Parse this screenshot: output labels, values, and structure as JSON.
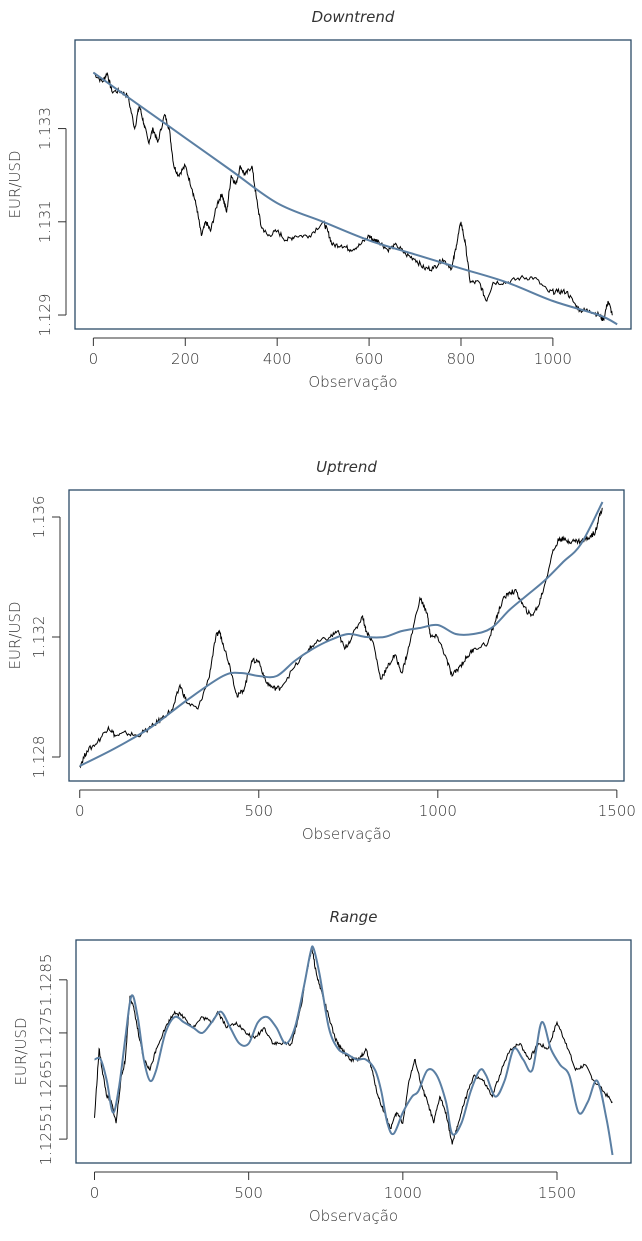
{
  "chart_data": [
    {
      "type": "line",
      "title": "Downtrend",
      "xlabel": "Observação",
      "ylabel": "EUR/USD",
      "xlim": [
        -40,
        1170
      ],
      "ylim": [
        1.1287,
        1.1349
      ],
      "xticks": [
        0,
        200,
        400,
        600,
        800,
        1000
      ],
      "xtick_labels": [
        "0",
        "200",
        "400",
        "600",
        "800",
        "1000"
      ],
      "yticks": [
        1.129,
        1.131,
        1.133
      ],
      "ytick_labels": [
        "1.129",
        "1.131",
        "1.133"
      ],
      "series": [
        {
          "role": "price",
          "color": "#000000",
          "x": [
            0,
            20,
            30,
            40,
            60,
            75,
            90,
            100,
            110,
            120,
            130,
            140,
            155,
            165,
            175,
            185,
            200,
            215,
            225,
            235,
            245,
            255,
            270,
            280,
            290,
            300,
            310,
            320,
            330,
            345,
            355,
            365,
            380,
            400,
            420,
            440,
            470,
            500,
            510,
            520,
            540,
            560,
            580,
            600,
            610,
            620,
            640,
            660,
            680,
            700,
            720,
            740,
            760,
            780,
            790,
            800,
            810,
            820,
            840,
            855,
            870,
            900,
            930,
            960,
            990,
            1010,
            1030,
            1050,
            1060,
            1080,
            1100,
            1110,
            1120,
            1130
          ],
          "y": [
            1.1342,
            1.134,
            1.1342,
            1.1338,
            1.1338,
            1.1337,
            1.133,
            1.1335,
            1.1331,
            1.1327,
            1.133,
            1.1327,
            1.1333,
            1.133,
            1.1322,
            1.132,
            1.1322,
            1.1317,
            1.1313,
            1.1307,
            1.131,
            1.1308,
            1.1314,
            1.1316,
            1.1312,
            1.132,
            1.1318,
            1.1322,
            1.132,
            1.1322,
            1.1315,
            1.1309,
            1.1307,
            1.1308,
            1.1306,
            1.1307,
            1.1307,
            1.131,
            1.1308,
            1.1305,
            1.1305,
            1.1304,
            1.1305,
            1.1307,
            1.1306,
            1.1306,
            1.1304,
            1.1305,
            1.1303,
            1.1302,
            1.13,
            1.13,
            1.1302,
            1.13,
            1.1305,
            1.131,
            1.1305,
            1.1297,
            1.1297,
            1.1293,
            1.1297,
            1.1297,
            1.1298,
            1.1298,
            1.1295,
            1.1295,
            1.1295,
            1.1292,
            1.1291,
            1.1291,
            1.129,
            1.1289,
            1.1293,
            1.129
          ]
        },
        {
          "role": "trend",
          "color": "#5b7fa3",
          "x": [
            0,
            100,
            200,
            300,
            400,
            500,
            600,
            700,
            800,
            900,
            1000,
            1100,
            1140
          ],
          "y": [
            1.1342,
            1.1335,
            1.1328,
            1.1321,
            1.1314,
            1.131,
            1.1306,
            1.1303,
            1.13,
            1.1297,
            1.1293,
            1.129,
            1.1288
          ]
        }
      ]
    },
    {
      "type": "line",
      "title": "Uptrend",
      "xlabel": "Observação",
      "ylabel": "EUR/USD",
      "xlim": [
        -30,
        1520
      ],
      "ylim": [
        1.1272,
        1.1369
      ],
      "xticks": [
        0,
        500,
        1000,
        1500
      ],
      "xtick_labels": [
        "0",
        "500",
        "1000",
        "1500"
      ],
      "yticks": [
        1.128,
        1.132,
        1.136
      ],
      "ytick_labels": [
        "1.128",
        "1.132",
        "1.136"
      ],
      "series": [
        {
          "role": "price",
          "color": "#000000",
          "x": [
            0,
            20,
            50,
            80,
            100,
            130,
            160,
            200,
            230,
            260,
            280,
            300,
            330,
            360,
            380,
            390,
            400,
            420,
            440,
            460,
            480,
            500,
            520,
            540,
            560,
            600,
            640,
            660,
            700,
            720,
            740,
            760,
            790,
            800,
            820,
            840,
            860,
            880,
            900,
            920,
            950,
            970,
            980,
            1000,
            1020,
            1040,
            1060,
            1080,
            1100,
            1140,
            1160,
            1180,
            1200,
            1220,
            1240,
            1260,
            1280,
            1300,
            1320,
            1340,
            1360,
            1380,
            1400,
            1420,
            1440,
            1450,
            1460
          ],
          "y": [
            1.1277,
            1.1282,
            1.1285,
            1.129,
            1.1287,
            1.1288,
            1.1287,
            1.129,
            1.1293,
            1.1296,
            1.1304,
            1.1298,
            1.1296,
            1.1306,
            1.132,
            1.1322,
            1.1318,
            1.131,
            1.13,
            1.1303,
            1.1312,
            1.1312,
            1.1305,
            1.1303,
            1.1303,
            1.131,
            1.1316,
            1.1318,
            1.132,
            1.1322,
            1.1316,
            1.132,
            1.1327,
            1.1322,
            1.1318,
            1.1306,
            1.131,
            1.1314,
            1.1308,
            1.1317,
            1.1333,
            1.1328,
            1.132,
            1.132,
            1.1314,
            1.1307,
            1.131,
            1.1313,
            1.1316,
            1.1318,
            1.1325,
            1.1332,
            1.1335,
            1.1335,
            1.133,
            1.1327,
            1.133,
            1.1338,
            1.1348,
            1.1353,
            1.1352,
            1.1352,
            1.1352,
            1.1353,
            1.1355,
            1.136,
            1.1363
          ]
        },
        {
          "role": "trend",
          "color": "#5b7fa3",
          "x": [
            0,
            100,
            200,
            300,
            400,
            450,
            500,
            550,
            600,
            650,
            700,
            750,
            800,
            850,
            900,
            950,
            1000,
            1050,
            1100,
            1150,
            1200,
            1250,
            1300,
            1350,
            1400,
            1460
          ],
          "y": [
            1.1277,
            1.1283,
            1.129,
            1.1299,
            1.1307,
            1.1308,
            1.1307,
            1.1307,
            1.1312,
            1.1316,
            1.1319,
            1.1321,
            1.132,
            1.132,
            1.1322,
            1.1323,
            1.1324,
            1.1321,
            1.1321,
            1.1323,
            1.1329,
            1.1334,
            1.1339,
            1.1345,
            1.1351,
            1.1365
          ]
        }
      ]
    },
    {
      "type": "line",
      "title": "Range",
      "xlabel": "Observação",
      "ylabel": "EUR/USD",
      "xlim": [
        -60,
        1740
      ],
      "ylim": [
        1.12505,
        1.12925
      ],
      "xticks": [
        0,
        500,
        1000,
        1500
      ],
      "xtick_labels": [
        "0",
        "500",
        "1000",
        "1500"
      ],
      "yticks": [
        1.1255,
        1.1265,
        1.1275,
        1.1285
      ],
      "ytick_labels": [
        "1.1255",
        "1.1265",
        "1.1275",
        "1.1285"
      ],
      "series": [
        {
          "role": "price",
          "color": "#000000",
          "x": [
            0,
            15,
            25,
            40,
            55,
            70,
            85,
            100,
            115,
            130,
            145,
            160,
            180,
            200,
            230,
            260,
            290,
            320,
            350,
            380,
            400,
            430,
            460,
            490,
            520,
            550,
            580,
            610,
            640,
            670,
            690,
            705,
            720,
            740,
            760,
            780,
            800,
            830,
            860,
            880,
            900,
            920,
            940,
            960,
            980,
            1000,
            1020,
            1040,
            1060,
            1080,
            1100,
            1120,
            1140,
            1160,
            1180,
            1200,
            1230,
            1260,
            1290,
            1320,
            1350,
            1380,
            1410,
            1440,
            1470,
            1500,
            1530,
            1560,
            1590,
            1620,
            1650,
            1680
          ],
          "y": [
            1.1259,
            1.1272,
            1.1268,
            1.1263,
            1.1262,
            1.1258,
            1.1266,
            1.127,
            1.1282,
            1.1279,
            1.1274,
            1.127,
            1.1268,
            1.1272,
            1.1276,
            1.1279,
            1.1278,
            1.1276,
            1.1278,
            1.1277,
            1.1279,
            1.1276,
            1.1277,
            1.1275,
            1.1274,
            1.1276,
            1.1273,
            1.1273,
            1.1273,
            1.128,
            1.1287,
            1.1291,
            1.1286,
            1.1282,
            1.1278,
            1.1274,
            1.1272,
            1.127,
            1.127,
            1.1272,
            1.1268,
            1.1263,
            1.126,
            1.1257,
            1.126,
            1.1258,
            1.1266,
            1.127,
            1.1265,
            1.1262,
            1.1258,
            1.1263,
            1.126,
            1.1254,
            1.1258,
            1.1262,
            1.1267,
            1.1266,
            1.1263,
            1.1268,
            1.1272,
            1.1273,
            1.127,
            1.1273,
            1.1272,
            1.1277,
            1.1273,
            1.1268,
            1.1269,
            1.1266,
            1.1264,
            1.1262
          ]
        },
        {
          "role": "trend",
          "color": "#5b7fa3",
          "x": [
            0,
            20,
            40,
            60,
            80,
            100,
            120,
            140,
            160,
            180,
            200,
            230,
            260,
            290,
            320,
            350,
            380,
            410,
            440,
            470,
            500,
            530,
            560,
            590,
            620,
            650,
            680,
            700,
            710,
            730,
            760,
            790,
            820,
            850,
            880,
            910,
            930,
            950,
            970,
            1000,
            1030,
            1050,
            1080,
            1110,
            1140,
            1160,
            1190,
            1220,
            1250,
            1270,
            1300,
            1330,
            1360,
            1390,
            1420,
            1450,
            1480,
            1510,
            1540,
            1570,
            1600,
            1630,
            1660,
            1680
          ],
          "y": [
            1.127,
            1.127,
            1.1266,
            1.126,
            1.1265,
            1.1274,
            1.1282,
            1.1278,
            1.127,
            1.1266,
            1.1268,
            1.1275,
            1.1278,
            1.1277,
            1.1276,
            1.1275,
            1.1277,
            1.1279,
            1.1276,
            1.1273,
            1.1273,
            1.1277,
            1.1278,
            1.1276,
            1.1273,
            1.1276,
            1.1284,
            1.129,
            1.1291,
            1.1286,
            1.1276,
            1.1272,
            1.1271,
            1.127,
            1.127,
            1.1268,
            1.1264,
            1.1258,
            1.1256,
            1.126,
            1.1263,
            1.1264,
            1.1268,
            1.1267,
            1.1262,
            1.1256,
            1.1258,
            1.1264,
            1.1268,
            1.1267,
            1.1263,
            1.1266,
            1.1272,
            1.127,
            1.1268,
            1.1277,
            1.1272,
            1.1269,
            1.1267,
            1.126,
            1.1262,
            1.1266,
            1.1259,
            1.1252
          ]
        }
      ]
    }
  ]
}
